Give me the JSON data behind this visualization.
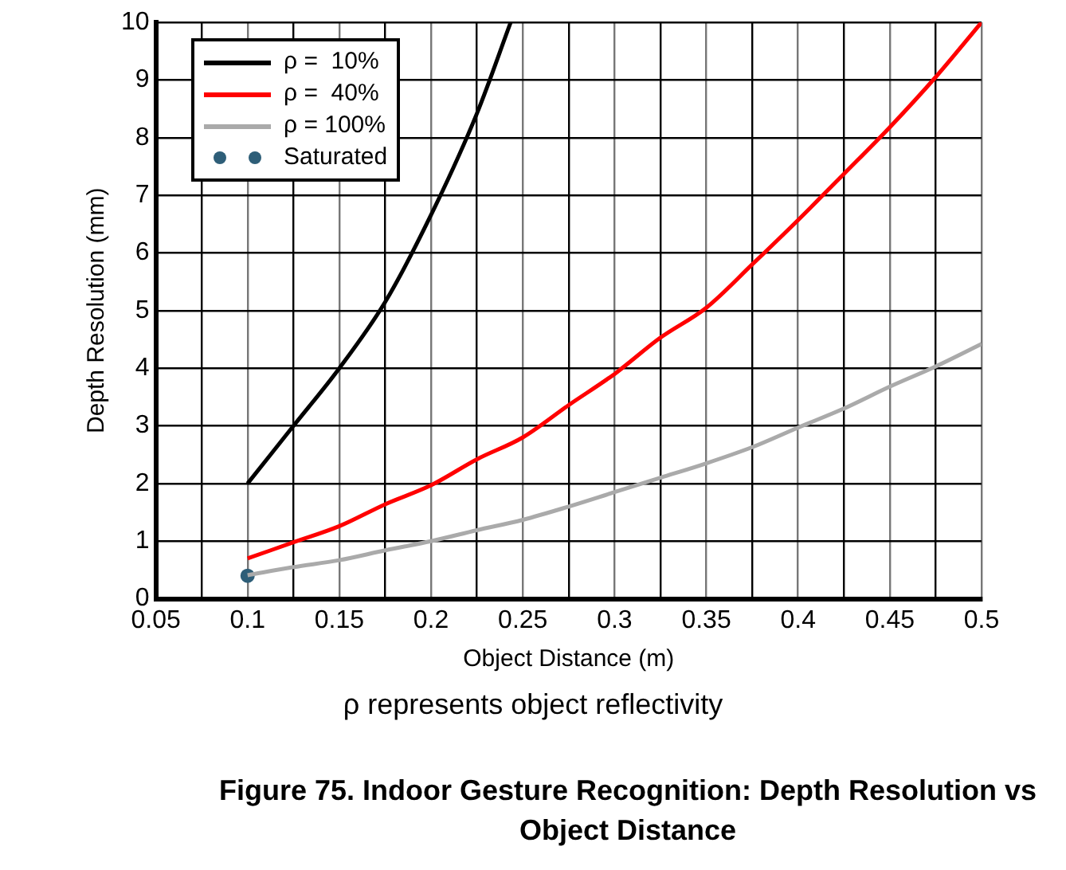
{
  "chart_data": {
    "type": "line",
    "title": "Figure 75. Indoor Gesture Recognition: Depth Resolution vs Object Distance",
    "xlabel": "Object Distance (m)",
    "ylabel": "Depth Resolution (mm)",
    "annotations": [
      "ρ represents object reflectivity"
    ],
    "xlim": [
      0.05,
      0.5
    ],
    "xticks": [
      0.05,
      {
        "value": 0.075,
        "label": null
      },
      0.1,
      {
        "value": 0.125,
        "label": null
      },
      0.15,
      {
        "value": 0.175,
        "label": null
      },
      0.2,
      {
        "value": 0.225,
        "label": null
      },
      0.25,
      {
        "value": 0.275,
        "label": null
      },
      0.3,
      {
        "value": 0.325,
        "label": null
      },
      0.35,
      {
        "value": 0.375,
        "label": null
      },
      0.4,
      {
        "value": 0.425,
        "label": null
      },
      0.45,
      {
        "value": 0.475,
        "label": null
      },
      0.5
    ],
    "ylim": [
      0,
      10
    ],
    "yticks": [
      0,
      1,
      2,
      3,
      4,
      5,
      6,
      7,
      8,
      9,
      10
    ],
    "grid": true,
    "legend": "top left",
    "line_style": "solid",
    "series": [
      {
        "name": "ρ =  10%",
        "marker": "none",
        "color": "#000000",
        "x": [
          0.1,
          0.125,
          0.15,
          0.175,
          0.2,
          0.225,
          0.2434
        ],
        "values": [
          2.0,
          3.0,
          4.0,
          5.15,
          6.66,
          8.42,
          10
        ]
      },
      {
        "name": "ρ =  40%",
        "marker": "none",
        "color": "#ff0000",
        "x": [
          0.1,
          0.125,
          0.15,
          0.175,
          0.2,
          0.225,
          0.25,
          0.275,
          0.3,
          0.325,
          0.35,
          0.375,
          0.4,
          0.425,
          0.45,
          0.475,
          0.5
        ],
        "values": [
          0.7,
          0.98,
          1.26,
          1.64,
          1.97,
          2.42,
          2.8,
          3.36,
          3.9,
          4.53,
          5.05,
          5.8,
          6.57,
          7.37,
          8.18,
          9.05,
          10
        ]
      },
      {
        "name": "ρ = 100%",
        "marker": "none",
        "color": "#aaaaaa",
        "x": [
          0.1,
          0.125,
          0.15,
          0.175,
          0.2,
          0.225,
          0.25,
          0.275,
          0.3,
          0.325,
          0.35,
          0.375,
          0.4,
          0.425,
          0.45,
          0.475,
          0.5
        ],
        "values": [
          0.41,
          0.55,
          0.67,
          0.84,
          1.0,
          1.19,
          1.37,
          1.6,
          1.85,
          2.1,
          2.35,
          2.63,
          2.97,
          3.3,
          3.68,
          4.03,
          4.42
        ]
      },
      {
        "name": "Saturated",
        "type": "scatter",
        "marker": "circle",
        "color": "#2e5e78",
        "x": [
          0.1
        ],
        "values": [
          0.4
        ]
      }
    ]
  }
}
